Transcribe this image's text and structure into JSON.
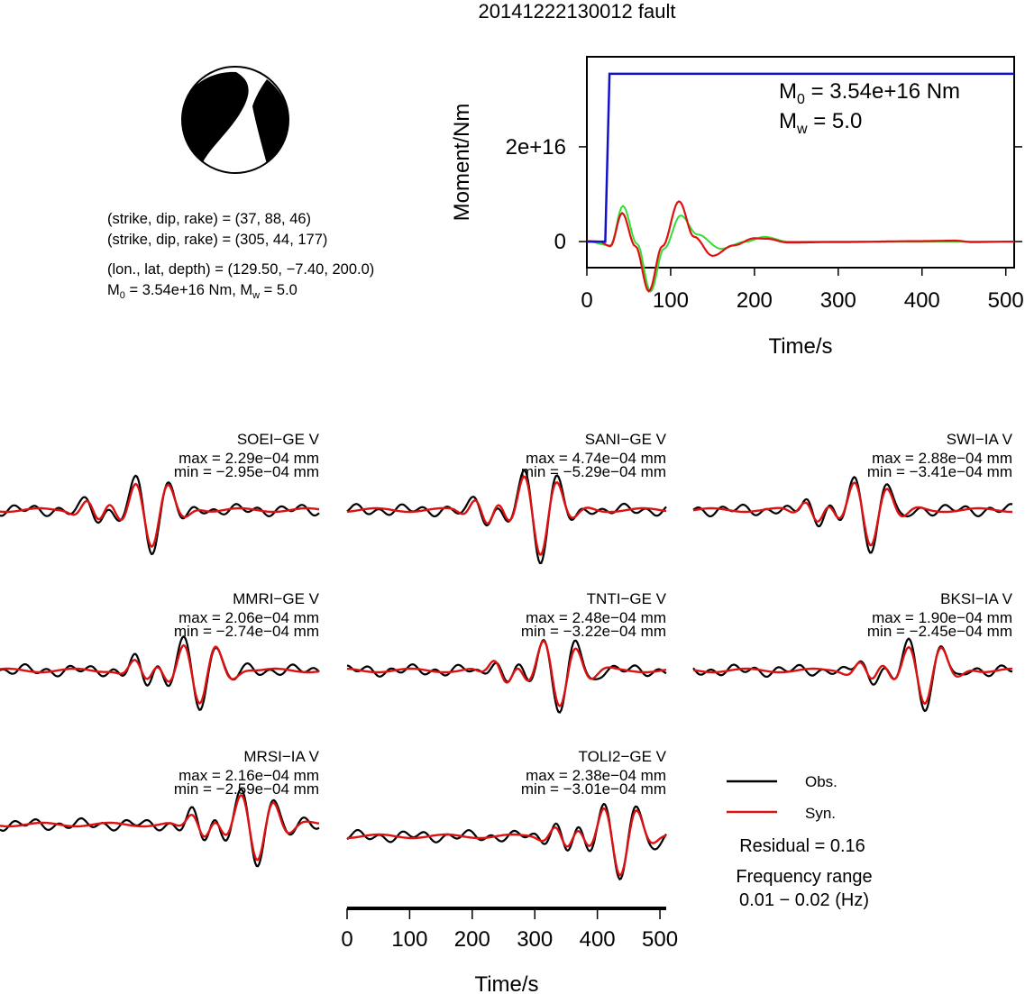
{
  "title": "20141222130012 fault",
  "mechanism": {
    "line1": "(strike, dip, rake) = (37, 88, 46)",
    "line2": "(strike, dip, rake) = (305, 44, 177)",
    "line3": "(lon., lat, depth) = (129.50, −7.40, 200.0)",
    "line4_m0": "3.54e+16 Nm",
    "line4_mw": "5.0",
    "m0_sub": "0",
    "mw_sub": "w"
  },
  "moment_chart": {
    "ylabel": "Moment/Nm",
    "xlabel": "Time/s",
    "xticks": [
      "0",
      "100",
      "200",
      "300",
      "400",
      "500"
    ],
    "yticks": [
      "0",
      "2e+16"
    ],
    "m0_text": "3.54e+16 Nm",
    "mw_text": "5.0"
  },
  "legend": {
    "obs": "Obs.",
    "syn": "Syn.",
    "residual": "Residual = 0.16",
    "freq_label": "Frequency range",
    "freq_value": "0.01 − 0.02 (Hz)"
  },
  "waveform_axis": {
    "xlabel": "Time/s",
    "xticks": [
      "0",
      "100",
      "200",
      "300",
      "400",
      "500"
    ]
  },
  "stations": [
    {
      "name": "SOEI−GE V",
      "max": "max = 2.29e−04 mm",
      "min": "min = −2.95e−04 mm"
    },
    {
      "name": "SANI−GE V",
      "max": "max = 4.74e−04 mm",
      "min": "min = −5.29e−04 mm"
    },
    {
      "name": "SWI−IA V",
      "max": "max = 2.88e−04 mm",
      "min": "min = −3.41e−04 mm"
    },
    {
      "name": "MMRI−GE V",
      "max": "max = 2.06e−04 mm",
      "min": "min = −2.74e−04 mm"
    },
    {
      "name": "TNTI−GE V",
      "max": "max = 2.48e−04 mm",
      "min": "min = −3.22e−04 mm"
    },
    {
      "name": "BKSI−IA V",
      "max": "max = 1.90e−04 mm",
      "min": "min = −2.45e−04 mm"
    },
    {
      "name": "MRSI−IA V",
      "max": "max = 2.16e−04 mm",
      "min": "min = −2.59e−04 mm"
    },
    {
      "name": "TOLI2−GE V",
      "max": "max = 2.38e−04 mm",
      "min": "min = −3.01e−04 mm"
    }
  ],
  "colors": {
    "obs": "#000000",
    "syn": "#dd1111",
    "moment": "#1111cc",
    "stf": "#dd1111",
    "stf2": "#33dd33"
  },
  "chart_data": [
    {
      "type": "line",
      "title": "20141222130012 fault",
      "xlabel": "Time/s",
      "ylabel": "Moment/Nm",
      "xlim": [
        0,
        510
      ],
      "ylim": [
        -5500000000000000.0,
        3.9e+16
      ],
      "series": [
        {
          "values": [
            [
              0,
              0
            ],
            [
              22,
              0
            ],
            [
              27,
              3.54e+16
            ],
            [
              510,
              3.54e+16
            ]
          ]
        },
        {
          "values": [
            [
              0,
              100000000000000.0
            ],
            [
              15,
              0
            ],
            [
              28,
              -1000000000000000.0
            ],
            [
              42,
              6000000000000000.0
            ],
            [
              58,
              -1000000000000000.0
            ],
            [
              74,
              -1.05e+16
            ],
            [
              90,
              -1000000000000000.0
            ],
            [
              110,
              8500000000000000.0
            ],
            [
              128,
              1000000000000000.0
            ],
            [
              150,
              -3000000000000000.0
            ],
            [
              175,
              -800000000000000.0
            ],
            [
              200,
              700000000000000.0
            ],
            [
              215,
              600000000000000.0
            ],
            [
              240,
              -200000000000000.0
            ],
            [
              300,
              -100000000000000.0
            ],
            [
              400,
              100000000000000.0
            ],
            [
              440,
              200000000000000.0
            ],
            [
              460,
              -100000000000000.0
            ],
            [
              510,
              0
            ]
          ]
        },
        {
          "values": [
            [
              0,
              50000000000000.0
            ],
            [
              28,
              -800000000000000.0
            ],
            [
              43,
              7500000000000000.0
            ],
            [
              60,
              -500000000000000.0
            ],
            [
              76,
              -1.05e+16
            ],
            [
              92,
              -1500000000000000.0
            ],
            [
              112,
              5500000000000000.0
            ],
            [
              132,
              1500000000000000.0
            ],
            [
              160,
              -1500000000000000.0
            ],
            [
              190,
              0
            ],
            [
              212,
              1000000000000000.0
            ],
            [
              240,
              0
            ],
            [
              510,
              0
            ]
          ]
        }
      ]
    },
    {
      "type": "line",
      "title": "SOEI−GE V",
      "series": [
        {
          "name": "Obs."
        },
        {
          "name": "Syn."
        }
      ]
    },
    {
      "type": "line",
      "title": "SANI−GE V",
      "series": [
        {
          "name": "Obs."
        },
        {
          "name": "Syn."
        }
      ]
    },
    {
      "type": "line",
      "title": "SWI−IA V",
      "series": [
        {
          "name": "Obs."
        },
        {
          "name": "Syn."
        }
      ]
    },
    {
      "type": "line",
      "title": "MMRI−GE V",
      "series": [
        {
          "name": "Obs."
        },
        {
          "name": "Syn."
        }
      ]
    },
    {
      "type": "line",
      "title": "TNTI−GE V",
      "series": [
        {
          "name": "Obs."
        },
        {
          "name": "Syn."
        }
      ]
    },
    {
      "type": "line",
      "title": "BKSI−IA V",
      "series": [
        {
          "name": "Obs."
        },
        {
          "name": "Syn."
        }
      ]
    },
    {
      "type": "line",
      "title": "MRSI−IA V",
      "series": [
        {
          "name": "Obs."
        },
        {
          "name": "Syn."
        }
      ]
    },
    {
      "type": "line",
      "title": "TOLI2−GE V",
      "xlabel": "Time/s",
      "xlim": [
        0,
        510
      ],
      "series": [
        {
          "name": "Obs."
        },
        {
          "name": "Syn."
        }
      ]
    }
  ]
}
